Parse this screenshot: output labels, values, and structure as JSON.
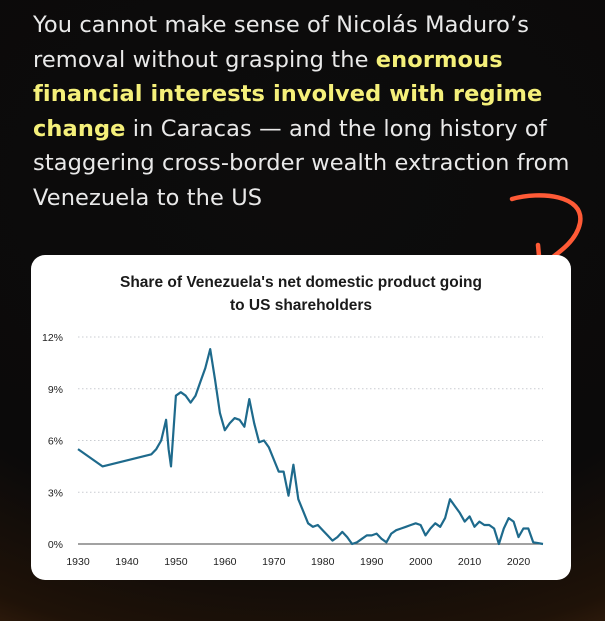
{
  "headline": {
    "part1": "You cannot make sense of Nicolás Maduro’s removal without grasping the ",
    "highlight": "enormous financial interests involved with regime change",
    "part2": " in Caracas — and the long history of staggering cross-border wealth extraction from Venezuela to the US"
  },
  "colors": {
    "line": "#1e6a8c",
    "highlight": "#f5f07a",
    "arrow": "#ff5a36"
  },
  "chart_data": {
    "type": "line",
    "title_line1": "Share of Venezuela's net domestic product going",
    "title_line2": "to US shareholders",
    "xlabel": "",
    "ylabel": "",
    "xlim": [
      1930,
      2025
    ],
    "ylim": [
      0,
      12
    ],
    "xticks": [
      1930,
      1940,
      1950,
      1960,
      1970,
      1980,
      1990,
      2000,
      2010,
      2020
    ],
    "yticks": [
      0,
      3,
      6,
      9,
      12
    ],
    "ytick_labels": [
      "0%",
      "3%",
      "6%",
      "9%",
      "12%"
    ],
    "grid": "horizontal",
    "series": [
      {
        "x": [
          1930,
          1935,
          1945,
          1946,
          1947,
          1948,
          1948.5,
          1949,
          1950,
          1951,
          1952,
          1953,
          1954,
          1955,
          1956,
          1957,
          1958,
          1959,
          1960,
          1961,
          1962,
          1963,
          1964,
          1965,
          1966,
          1967,
          1968,
          1969,
          1970,
          1971,
          1972,
          1973,
          1974,
          1975,
          1976,
          1977,
          1978,
          1979,
          1980,
          1981,
          1982,
          1983,
          1984,
          1985,
          1986,
          1987,
          1988,
          1989,
          1990,
          1991,
          1992,
          1993,
          1994,
          1995,
          1996,
          1997,
          1998,
          1999,
          2000,
          2001,
          2002,
          2003,
          2004,
          2005,
          2006,
          2007,
          2008,
          2009,
          2010,
          2011,
          2012,
          2013,
          2014,
          2015,
          2016,
          2017,
          2018,
          2019,
          2020,
          2021,
          2022,
          2023,
          2024,
          2025
        ],
        "y": [
          5.5,
          4.5,
          5.2,
          5.5,
          6.0,
          7.2,
          5.5,
          4.5,
          8.6,
          8.8,
          8.6,
          8.2,
          8.6,
          9.4,
          10.2,
          11.3,
          9.5,
          7.6,
          6.6,
          7.0,
          7.3,
          7.2,
          6.8,
          8.4,
          7.0,
          5.9,
          6.0,
          5.6,
          4.9,
          4.2,
          4.2,
          2.8,
          4.6,
          2.6,
          1.9,
          1.2,
          1.0,
          1.1,
          0.8,
          0.5,
          0.2,
          0.4,
          0.7,
          0.4,
          0.0,
          0.1,
          0.3,
          0.5,
          0.5,
          0.6,
          0.3,
          0.1,
          0.6,
          0.8,
          0.9,
          1.0,
          1.1,
          1.2,
          1.1,
          0.5,
          0.9,
          1.2,
          1.0,
          1.5,
          2.6,
          2.2,
          1.8,
          1.3,
          1.6,
          1.0,
          1.3,
          1.1,
          1.1,
          0.9,
          0.0,
          0.9,
          1.5,
          1.3,
          0.4,
          0.9,
          0.9,
          0.1,
          0.05,
          0.0
        ]
      }
    ]
  }
}
